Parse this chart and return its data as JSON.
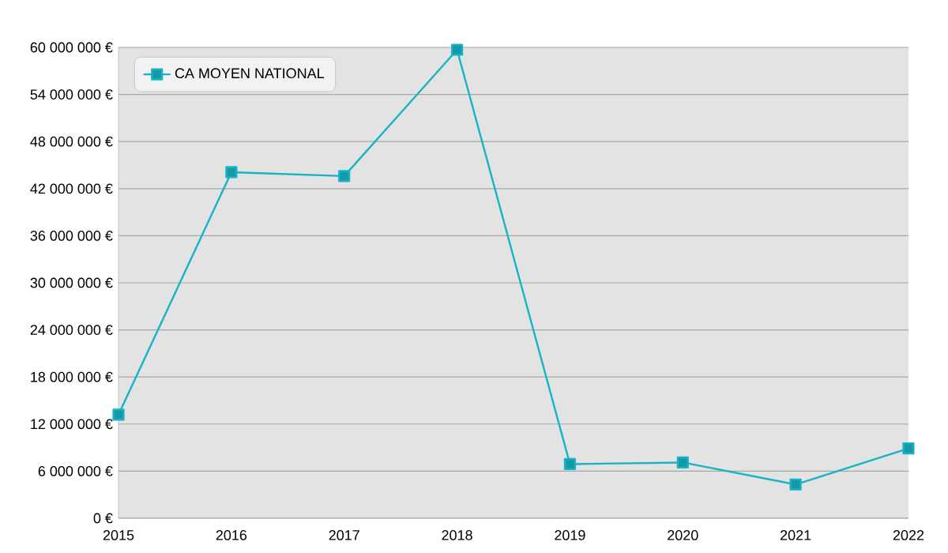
{
  "chart_data": {
    "type": "line",
    "categories": [
      "2015",
      "2016",
      "2017",
      "2018",
      "2019",
      "2020",
      "2021",
      "2022"
    ],
    "series": [
      {
        "name": "CA MOYEN NATIONAL",
        "color": "#16b4c6",
        "values": [
          13200000,
          44100000,
          43600000,
          59700000,
          6900000,
          7100000,
          4300000,
          8900000
        ]
      }
    ],
    "ylim": [
      0,
      60000000
    ],
    "yticks": [
      {
        "value": 0,
        "label": "0 €"
      },
      {
        "value": 6000000,
        "label": "6 000 000 €"
      },
      {
        "value": 12000000,
        "label": "12 000 000 €"
      },
      {
        "value": 18000000,
        "label": "18 000 000 €"
      },
      {
        "value": 24000000,
        "label": "24 000 000 €"
      },
      {
        "value": 30000000,
        "label": "30 000 000 €"
      },
      {
        "value": 36000000,
        "label": "36 000 000 €"
      },
      {
        "value": 42000000,
        "label": "42 000 000 €"
      },
      {
        "value": 48000000,
        "label": "48 000 000 €"
      },
      {
        "value": 54000000,
        "label": "54 000 000 €"
      },
      {
        "value": 60000000,
        "label": "60 000 000 €"
      }
    ],
    "grid": "y",
    "legend": "top left",
    "marker": "square",
    "line_style": "solid"
  }
}
